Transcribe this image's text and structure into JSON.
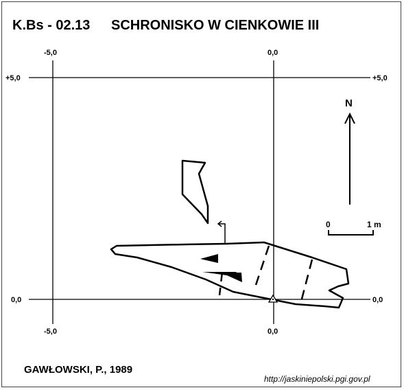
{
  "title": {
    "code": "K.Bs - 02.13",
    "name": "SCHRONISKO W CIENKOWIE III"
  },
  "grid": {
    "x_left": "-5,0",
    "x_right": "0,0",
    "y_top_left": "+5,0",
    "y_top_right": "+5,0",
    "y_bottom_left": "0,0",
    "y_bottom_right": "0,0",
    "x_bottom_left": "-5,0",
    "x_bottom_right": "0,0"
  },
  "north": {
    "label": "N"
  },
  "scale": {
    "start": "0",
    "end": "1 m"
  },
  "credits": {
    "author": "GAWŁOWSKI, P., 1989",
    "url": "http://jaskiniepolski.pgi.gov.pl"
  },
  "colors": {
    "ink": "#000000",
    "background": "#ffffff",
    "border": "#444444"
  }
}
